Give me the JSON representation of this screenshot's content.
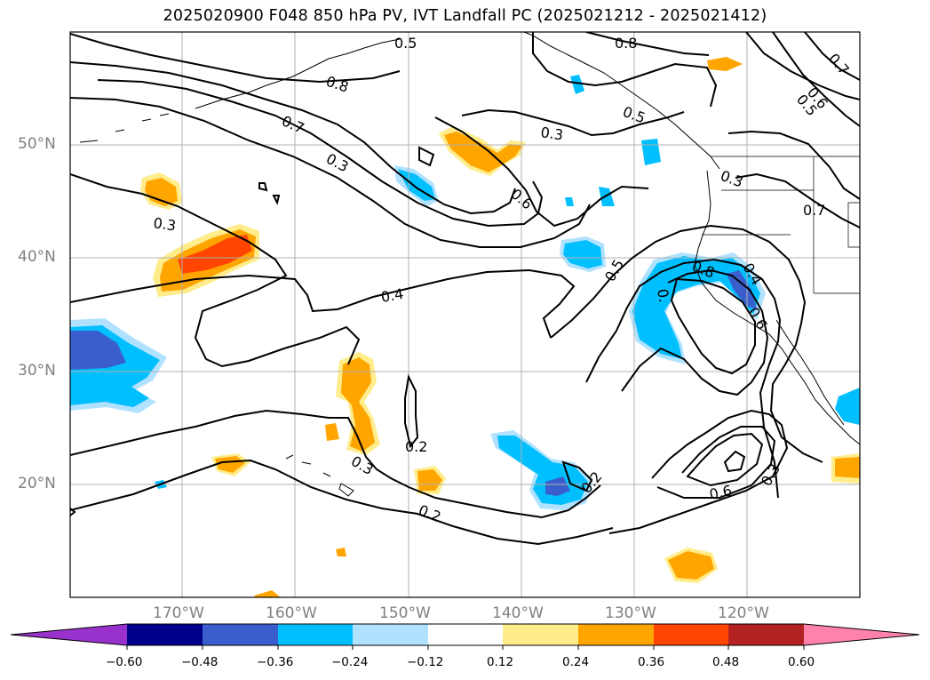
{
  "title": "2025020900 F048 850 hPa PV, IVT Landfall PC (2025021212 - 2025021412)",
  "map": {
    "lat_labels": [
      "50°N",
      "40°N",
      "30°N",
      "20°N"
    ],
    "lon_labels": [
      "170°W",
      "160°W",
      "150°W",
      "140°W",
      "130°W",
      "120°W"
    ],
    "grid_color": "#b0b0b0"
  },
  "contour_labels": [
    {
      "key": "c05a",
      "text": "0.5"
    },
    {
      "key": "c08a",
      "text": "0.8"
    },
    {
      "key": "c07a",
      "text": "0.7"
    },
    {
      "key": "c08b",
      "text": "0.8"
    },
    {
      "key": "c07b",
      "text": "0.7"
    },
    {
      "key": "c06a",
      "text": "0.6"
    },
    {
      "key": "c05b",
      "text": "0.5"
    },
    {
      "key": "c03a",
      "text": "0.3"
    },
    {
      "key": "c05c",
      "text": "0.5"
    },
    {
      "key": "c06b",
      "text": "0.6"
    },
    {
      "key": "c03b",
      "text": "0.3"
    },
    {
      "key": "c03c",
      "text": "0.3"
    },
    {
      "key": "c03d",
      "text": "0.3"
    },
    {
      "key": "c04a",
      "text": "0.4"
    },
    {
      "key": "c05d",
      "text": "0.5"
    },
    {
      "key": "c08c",
      "text": "0.8"
    },
    {
      "key": "c04b",
      "text": "0.4"
    },
    {
      "key": "c06c",
      "text": "0.6"
    },
    {
      "key": "c07c",
      "text": "0.7"
    },
    {
      "key": "c02a",
      "text": "0.2"
    },
    {
      "key": "c03e",
      "text": "0.3"
    },
    {
      "key": "c02b",
      "text": "0.2"
    },
    {
      "key": "c02c",
      "text": "0.2"
    },
    {
      "key": "c06d",
      "text": "0.6"
    },
    {
      "key": "c03f",
      "text": "0.3"
    },
    {
      "key": "c0x",
      "text": "0."
    }
  ],
  "colorbar": {
    "ticks": [
      "−0.60",
      "−0.48",
      "−0.36",
      "−0.24",
      "−0.12",
      "0.12",
      "0.24",
      "0.36",
      "0.48",
      "0.60"
    ],
    "colors": [
      "#9932cc",
      "#00008b",
      "#3a5fcd",
      "#00bfff",
      "#b0e2ff",
      "#ffffff",
      "#ffec8b",
      "#ffa500",
      "#ff4500",
      "#b22222",
      "#ff82ab"
    ]
  }
}
